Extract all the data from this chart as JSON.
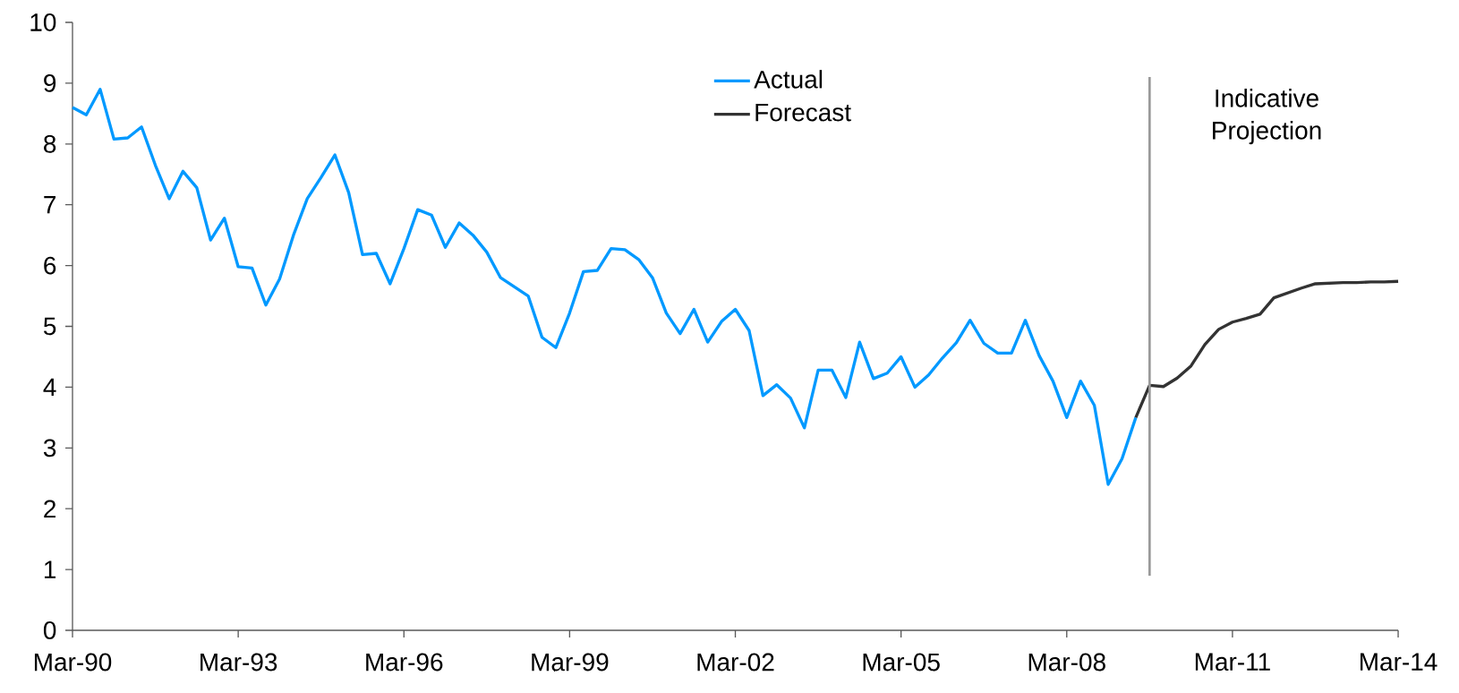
{
  "chart_data": {
    "type": "line",
    "xlim": [
      "1990-03",
      "2014-03"
    ],
    "ylim": [
      0,
      10
    ],
    "xticks": [
      {
        "value": "1990-03",
        "label": "Mar-90"
      },
      {
        "value": "1993-03",
        "label": "Mar-93"
      },
      {
        "value": "1996-03",
        "label": "Mar-96"
      },
      {
        "value": "1999-03",
        "label": "Mar-99"
      },
      {
        "value": "2002-03",
        "label": "Mar-02"
      },
      {
        "value": "2005-03",
        "label": "Mar-05"
      },
      {
        "value": "2008-03",
        "label": "Mar-08"
      },
      {
        "value": "2011-03",
        "label": "Mar-11"
      },
      {
        "value": "2014-03",
        "label": "Mar-14"
      }
    ],
    "yticks": [
      0,
      1,
      2,
      3,
      4,
      5,
      6,
      7,
      8,
      9,
      10
    ],
    "grid": false,
    "legend": "top",
    "marker": "none",
    "line_style": "solid",
    "ref_lines": [
      {
        "axis": "x",
        "value": "2009-09",
        "label": "Indicative Projection",
        "color": "#999999"
      }
    ],
    "series": [
      {
        "name": "Actual",
        "color": "#0099ff",
        "x": [
          "1990-03",
          "1990-06",
          "1990-09",
          "1990-12",
          "1991-03",
          "1991-06",
          "1991-09",
          "1991-12",
          "1992-03",
          "1992-06",
          "1992-09",
          "1992-12",
          "1993-03",
          "1993-06",
          "1993-09",
          "1993-12",
          "1994-03",
          "1994-06",
          "1994-09",
          "1994-12",
          "1995-03",
          "1995-06",
          "1995-09",
          "1995-12",
          "1996-03",
          "1996-06",
          "1996-09",
          "1996-12",
          "1997-03",
          "1997-06",
          "1997-09",
          "1997-12",
          "1998-03",
          "1998-06",
          "1998-09",
          "1998-12",
          "1999-03",
          "1999-06",
          "1999-09",
          "1999-12",
          "2000-03",
          "2000-06",
          "2000-09",
          "2000-12",
          "2001-03",
          "2001-06",
          "2001-09",
          "2001-12",
          "2002-03",
          "2002-06",
          "2002-09",
          "2002-12",
          "2003-03",
          "2003-06",
          "2003-09",
          "2003-12",
          "2004-03",
          "2004-06",
          "2004-09",
          "2004-12",
          "2005-03",
          "2005-06",
          "2005-09",
          "2005-12",
          "2006-03",
          "2006-06",
          "2006-09",
          "2006-12",
          "2007-03",
          "2007-06",
          "2007-09",
          "2007-12",
          "2008-03",
          "2008-06",
          "2008-09",
          "2008-12",
          "2009-03",
          "2009-06"
        ],
        "values": [
          8.6,
          8.48,
          8.9,
          8.08,
          8.1,
          8.28,
          7.65,
          7.1,
          7.55,
          7.28,
          6.42,
          6.78,
          5.98,
          5.96,
          5.35,
          5.78,
          6.5,
          7.1,
          7.45,
          7.82,
          7.2,
          6.18,
          6.2,
          5.7,
          6.28,
          6.92,
          6.83,
          6.3,
          6.7,
          6.5,
          6.22,
          5.8,
          5.65,
          5.5,
          4.82,
          4.65,
          5.22,
          5.9,
          5.92,
          6.28,
          6.26,
          6.1,
          5.8,
          5.22,
          4.88,
          5.28,
          4.74,
          5.08,
          5.28,
          4.93,
          3.86,
          4.04,
          3.82,
          3.33,
          4.28,
          4.28,
          3.83,
          4.74,
          4.14,
          4.23,
          4.5,
          4.0,
          4.2,
          4.48,
          4.73,
          5.1,
          4.72,
          4.56,
          4.56,
          5.1,
          4.52,
          4.1,
          3.5,
          4.1,
          3.7,
          2.4,
          2.82,
          3.5
        ]
      },
      {
        "name": "Forecast",
        "color": "#333333",
        "x": [
          "2009-06",
          "2009-09",
          "2009-12",
          "2010-03",
          "2010-06",
          "2010-09",
          "2010-12",
          "2011-03",
          "2011-06",
          "2011-09",
          "2011-12",
          "2012-03",
          "2012-06",
          "2012-09",
          "2012-12",
          "2013-03",
          "2013-06",
          "2013-09",
          "2013-12",
          "2014-03"
        ],
        "values": [
          3.5,
          4.03,
          4.01,
          4.15,
          4.35,
          4.7,
          4.95,
          5.07,
          5.13,
          5.2,
          5.47,
          5.55,
          5.63,
          5.7,
          5.71,
          5.72,
          5.72,
          5.73,
          5.73,
          5.74
        ]
      }
    ]
  }
}
